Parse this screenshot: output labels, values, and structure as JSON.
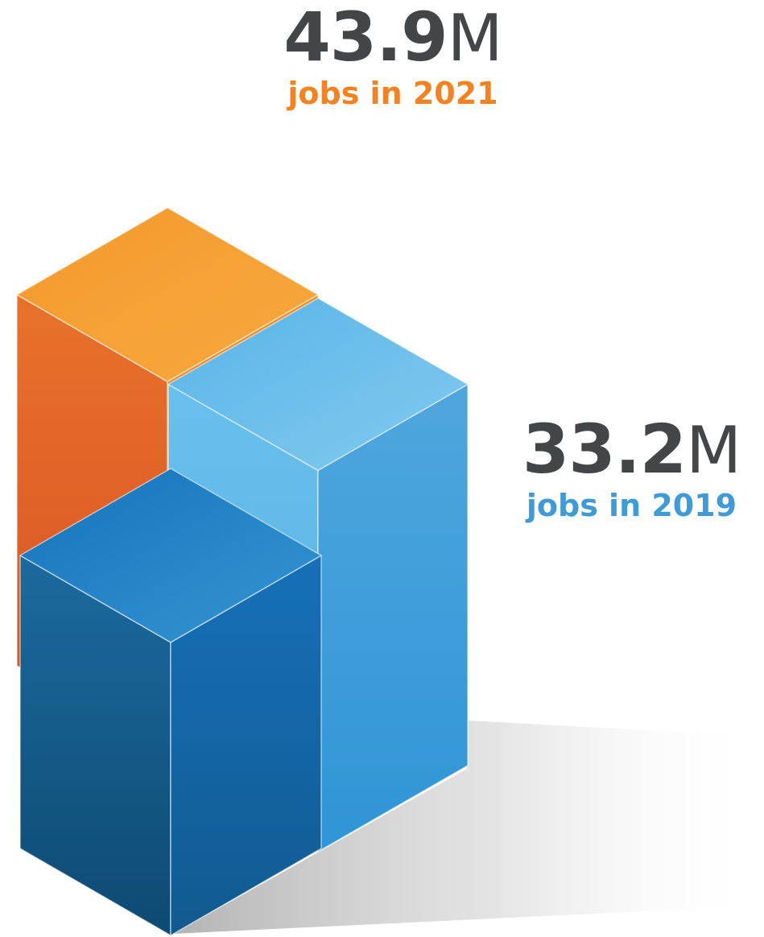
{
  "chart_data": {
    "type": "bar",
    "style": "3d-isometric",
    "categories": [
      "2021",
      "2019"
    ],
    "series": [
      {
        "name": "jobs",
        "values": [
          43.9,
          33.2
        ]
      }
    ],
    "annotations": [
      {
        "value_number": "43.9",
        "unit": "M",
        "label": "jobs in 2021",
        "color": "#F58220"
      },
      {
        "value_number": "33.2",
        "unit": "M",
        "label": "jobs in 2019",
        "color": "#3E9BD7"
      }
    ],
    "title": "",
    "xlabel": "",
    "ylabel": "",
    "ylim": [
      0,
      45
    ],
    "grid": false,
    "legend": "none"
  },
  "colors": {
    "orange_top": "#F5A034",
    "orange_left": "#DB5B26",
    "orange_right": "#F2821E",
    "lightblue_top": "#6CBDEA",
    "lightblue_left": "#58B5E6",
    "lightblue_right": "#3598D8",
    "darkblue_top": "#2A8FCF",
    "darkblue_left": "#155E8F",
    "darkblue_right": "#166BB2"
  }
}
